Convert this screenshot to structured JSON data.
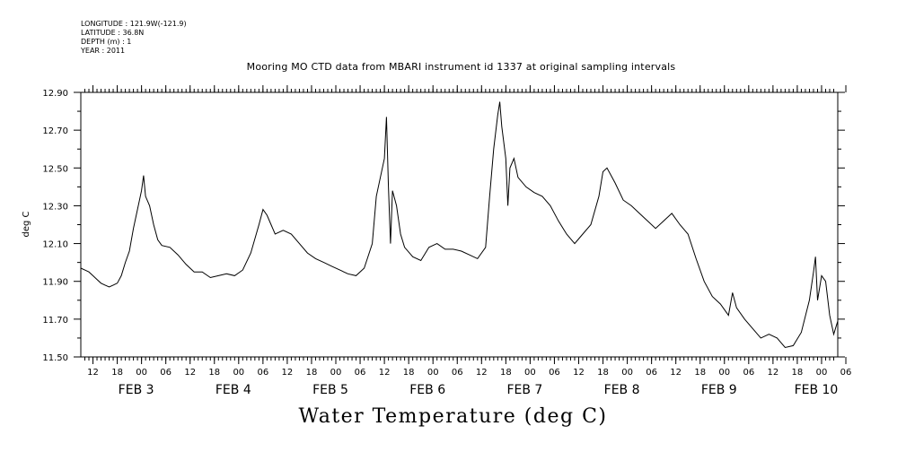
{
  "metadata": {
    "longitude": "LONGITUDE : 121.9W(-121.9)",
    "latitude": "LATITUDE : 36.8N",
    "depth": "DEPTH (m) : 1",
    "year": "YEAR : 2011"
  },
  "chart_data": {
    "type": "line",
    "title": "Mooring MO CTD data from MBARI instrument id 1337 at original sampling intervals",
    "bottom_title": "Water Temperature (deg C)",
    "xlabel": "",
    "ylabel": "deg C",
    "ylim": [
      11.5,
      12.9
    ],
    "yticks": [
      "11.50",
      "11.70",
      "11.90",
      "12.10",
      "12.30",
      "12.50",
      "12.70",
      "12.90"
    ],
    "x_units": "hours since 2011-02-02 09:00",
    "xlim": [
      0,
      187
    ],
    "hour_tick_labels": [
      "12",
      "18",
      "00",
      "06",
      "12",
      "18",
      "00",
      "06",
      "12",
      "18",
      "00",
      "06",
      "12",
      "18",
      "00",
      "06",
      "12",
      "18",
      "00",
      "06",
      "12",
      "18",
      "00",
      "06",
      "12",
      "18",
      "00",
      "06",
      "12",
      "18",
      "00",
      "06"
    ],
    "date_labels": [
      "FEB  3",
      "FEB  4",
      "FEB  5",
      "FEB  6",
      "FEB  7",
      "FEB  8",
      "FEB  9",
      "FEB 10"
    ],
    "grid": false,
    "series": [
      {
        "name": "",
        "points": [
          [
            0,
            11.97
          ],
          [
            1,
            11.96
          ],
          [
            2,
            11.95
          ],
          [
            3,
            11.93
          ],
          [
            4,
            11.91
          ],
          [
            5,
            11.89
          ],
          [
            6,
            11.88
          ],
          [
            7,
            11.87
          ],
          [
            8,
            11.88
          ],
          [
            9,
            11.89
          ],
          [
            10,
            11.93
          ],
          [
            11,
            12.0
          ],
          [
            12,
            12.06
          ],
          [
            13,
            12.18
          ],
          [
            14,
            12.28
          ],
          [
            15,
            12.38
          ],
          [
            15.5,
            12.46
          ],
          [
            16,
            12.35
          ],
          [
            17,
            12.3
          ],
          [
            18,
            12.2
          ],
          [
            19,
            12.12
          ],
          [
            20,
            12.09
          ],
          [
            22,
            12.08
          ],
          [
            24,
            12.04
          ],
          [
            26,
            11.99
          ],
          [
            28,
            11.95
          ],
          [
            30,
            11.95
          ],
          [
            32,
            11.92
          ],
          [
            34,
            11.93
          ],
          [
            36,
            11.94
          ],
          [
            38,
            11.93
          ],
          [
            40,
            11.96
          ],
          [
            42,
            12.05
          ],
          [
            44,
            12.2
          ],
          [
            45,
            12.28
          ],
          [
            46,
            12.25
          ],
          [
            47,
            12.2
          ],
          [
            48,
            12.15
          ],
          [
            50,
            12.17
          ],
          [
            52,
            12.15
          ],
          [
            54,
            12.1
          ],
          [
            56,
            12.05
          ],
          [
            58,
            12.02
          ],
          [
            60,
            12.0
          ],
          [
            62,
            11.98
          ],
          [
            64,
            11.96
          ],
          [
            66,
            11.94
          ],
          [
            68,
            11.93
          ],
          [
            70,
            11.97
          ],
          [
            72,
            12.1
          ],
          [
            73,
            12.35
          ],
          [
            74,
            12.45
          ],
          [
            75,
            12.55
          ],
          [
            75.5,
            12.77
          ],
          [
            76,
            12.4
          ],
          [
            76.5,
            12.1
          ],
          [
            77,
            12.38
          ],
          [
            78,
            12.3
          ],
          [
            79,
            12.15
          ],
          [
            80,
            12.08
          ],
          [
            82,
            12.03
          ],
          [
            84,
            12.01
          ],
          [
            86,
            12.08
          ],
          [
            88,
            12.1
          ],
          [
            90,
            12.07
          ],
          [
            92,
            12.07
          ],
          [
            94,
            12.06
          ],
          [
            96,
            12.04
          ],
          [
            98,
            12.02
          ],
          [
            100,
            12.08
          ],
          [
            101,
            12.35
          ],
          [
            102,
            12.6
          ],
          [
            103,
            12.78
          ],
          [
            103.5,
            12.85
          ],
          [
            104,
            12.72
          ],
          [
            105,
            12.55
          ],
          [
            105.5,
            12.3
          ],
          [
            106,
            12.5
          ],
          [
            107,
            12.55
          ],
          [
            108,
            12.45
          ],
          [
            110,
            12.4
          ],
          [
            112,
            12.37
          ],
          [
            114,
            12.35
          ],
          [
            116,
            12.3
          ],
          [
            118,
            12.22
          ],
          [
            120,
            12.15
          ],
          [
            122,
            12.1
          ],
          [
            124,
            12.15
          ],
          [
            126,
            12.2
          ],
          [
            128,
            12.35
          ],
          [
            129,
            12.48
          ],
          [
            130,
            12.5
          ],
          [
            131,
            12.46
          ],
          [
            132,
            12.42
          ],
          [
            134,
            12.33
          ],
          [
            136,
            12.3
          ],
          [
            138,
            12.26
          ],
          [
            140,
            12.22
          ],
          [
            142,
            12.18
          ],
          [
            144,
            12.22
          ],
          [
            146,
            12.26
          ],
          [
            148,
            12.2
          ],
          [
            150,
            12.15
          ],
          [
            152,
            12.02
          ],
          [
            154,
            11.9
          ],
          [
            156,
            11.82
          ],
          [
            158,
            11.78
          ],
          [
            160,
            11.72
          ],
          [
            161,
            11.84
          ],
          [
            162,
            11.76
          ],
          [
            164,
            11.7
          ],
          [
            166,
            11.65
          ],
          [
            168,
            11.6
          ],
          [
            170,
            11.62
          ],
          [
            172,
            11.6
          ],
          [
            174,
            11.55
          ],
          [
            176,
            11.56
          ],
          [
            178,
            11.63
          ],
          [
            180,
            11.8
          ],
          [
            181,
            11.95
          ],
          [
            181.5,
            12.03
          ],
          [
            182,
            11.8
          ],
          [
            183,
            11.93
          ],
          [
            184,
            11.9
          ],
          [
            185,
            11.72
          ],
          [
            186,
            11.62
          ],
          [
            187,
            11.69
          ]
        ]
      }
    ]
  }
}
